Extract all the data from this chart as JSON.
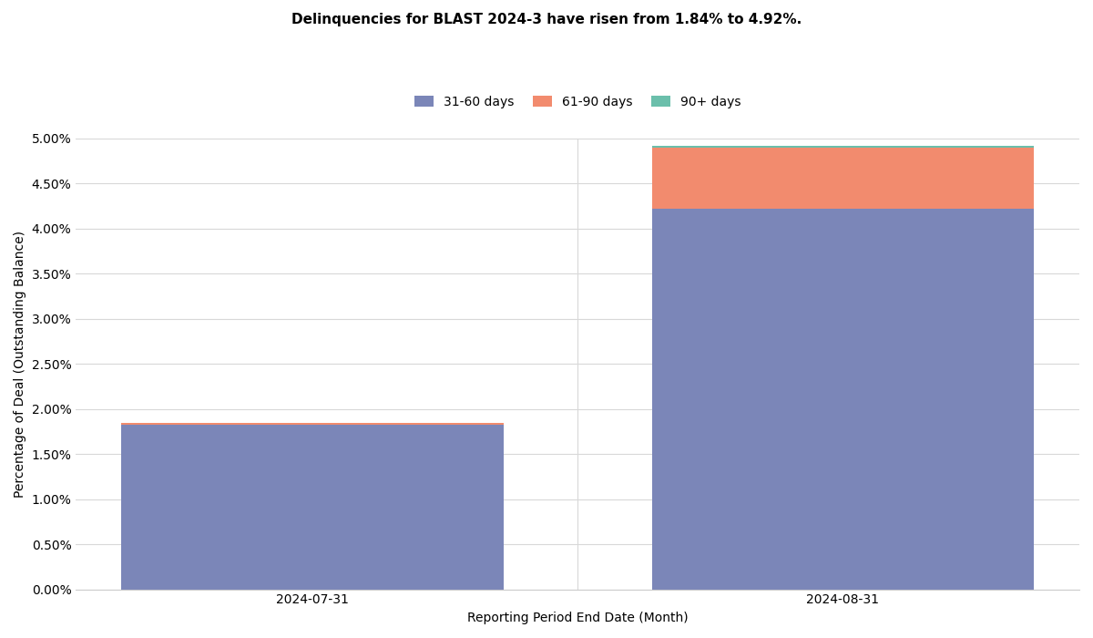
{
  "title": "Delinquencies for BLAST 2024-3 have risen from 1.84% to 4.92%.",
  "categories": [
    "2024-07-31",
    "2024-08-31"
  ],
  "segments": [
    "31-60 days",
    "61-90 days",
    "90+ days"
  ],
  "values": [
    [
      1.82,
      0.02,
      0.0
    ],
    [
      4.22,
      0.68,
      0.02
    ]
  ],
  "colors": [
    "#7b86b8",
    "#f28b6e",
    "#6bbfab"
  ],
  "xlabel": "Reporting Period End Date (Month)",
  "ylabel": "Percentage of Deal (Outstanding Balance)",
  "ylim_max": 0.05,
  "yticks": [
    0.0,
    0.005,
    0.01,
    0.015,
    0.02,
    0.025,
    0.03,
    0.035,
    0.04,
    0.045,
    0.05
  ],
  "background_color": "#ffffff",
  "grid_color": "#d8d8d8",
  "title_fontsize": 11,
  "axis_fontsize": 10,
  "tick_fontsize": 10,
  "legend_fontsize": 10,
  "bar_width": 0.72
}
